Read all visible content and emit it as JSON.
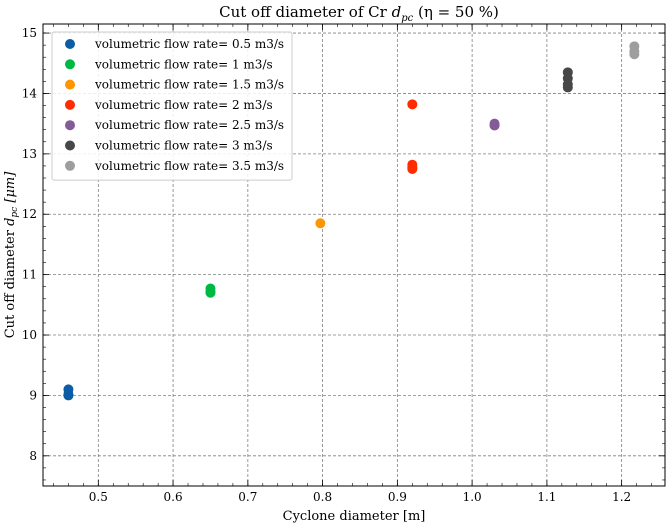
{
  "chart_data": {
    "type": "scatter",
    "title": "Cut off diameter of Cr d_pc (η = 50 %)",
    "title_parts": {
      "pre": "Cut off diameter of Cr ",
      "sym": "d",
      "sub": "pc",
      "post": " (η = 50 %)"
    },
    "xlabel": "Cyclone diameter [m]",
    "ylabel_parts": {
      "pre": "Cut off diameter ",
      "sym": "d",
      "sub": "pc",
      "post": " [μm]"
    },
    "xlim": [
      0.426,
      1.258
    ],
    "ylim": [
      7.5,
      15.15
    ],
    "xticks": [
      "0.5",
      "0.6",
      "0.7",
      "0.8",
      "0.9",
      "1.0",
      "1.1",
      "1.2"
    ],
    "yticks": [
      "8",
      "9",
      "10",
      "11",
      "12",
      "13",
      "14",
      "15"
    ],
    "grid": true,
    "legend_position": "top-left",
    "series": [
      {
        "name": "volumetric flow rate= 0.5 m3/s",
        "color": "#0C5DA5",
        "points": [
          [
            0.46,
            9.0
          ],
          [
            0.46,
            9.02
          ],
          [
            0.46,
            9.1
          ]
        ]
      },
      {
        "name": "volumetric flow rate= 1 m3/s",
        "color": "#00B945",
        "points": [
          [
            0.65,
            10.7
          ],
          [
            0.65,
            10.72
          ],
          [
            0.65,
            10.77
          ]
        ]
      },
      {
        "name": "volumetric flow rate= 1.5 m3/s",
        "color": "#FF9500",
        "points": [
          [
            0.797,
            11.85
          ]
        ]
      },
      {
        "name": "volumetric flow rate= 2 m3/s",
        "color": "#FF2C00",
        "points": [
          [
            0.92,
            12.75
          ],
          [
            0.92,
            12.78
          ],
          [
            0.92,
            12.82
          ],
          [
            0.92,
            13.82
          ]
        ]
      },
      {
        "name": "volumetric flow rate= 2.5 m3/s",
        "color": "#845B97",
        "points": [
          [
            1.03,
            13.47
          ],
          [
            1.03,
            13.5
          ]
        ]
      },
      {
        "name": "volumetric flow rate= 3 m3/s",
        "color": "#474747",
        "points": [
          [
            1.128,
            14.1
          ],
          [
            1.128,
            14.15
          ],
          [
            1.128,
            14.25
          ],
          [
            1.128,
            14.35
          ]
        ]
      },
      {
        "name": "volumetric flow rate= 3.5 m3/s",
        "color": "#9E9E9E",
        "points": [
          [
            1.217,
            14.65
          ],
          [
            1.217,
            14.7
          ],
          [
            1.217,
            14.78
          ]
        ]
      }
    ]
  }
}
